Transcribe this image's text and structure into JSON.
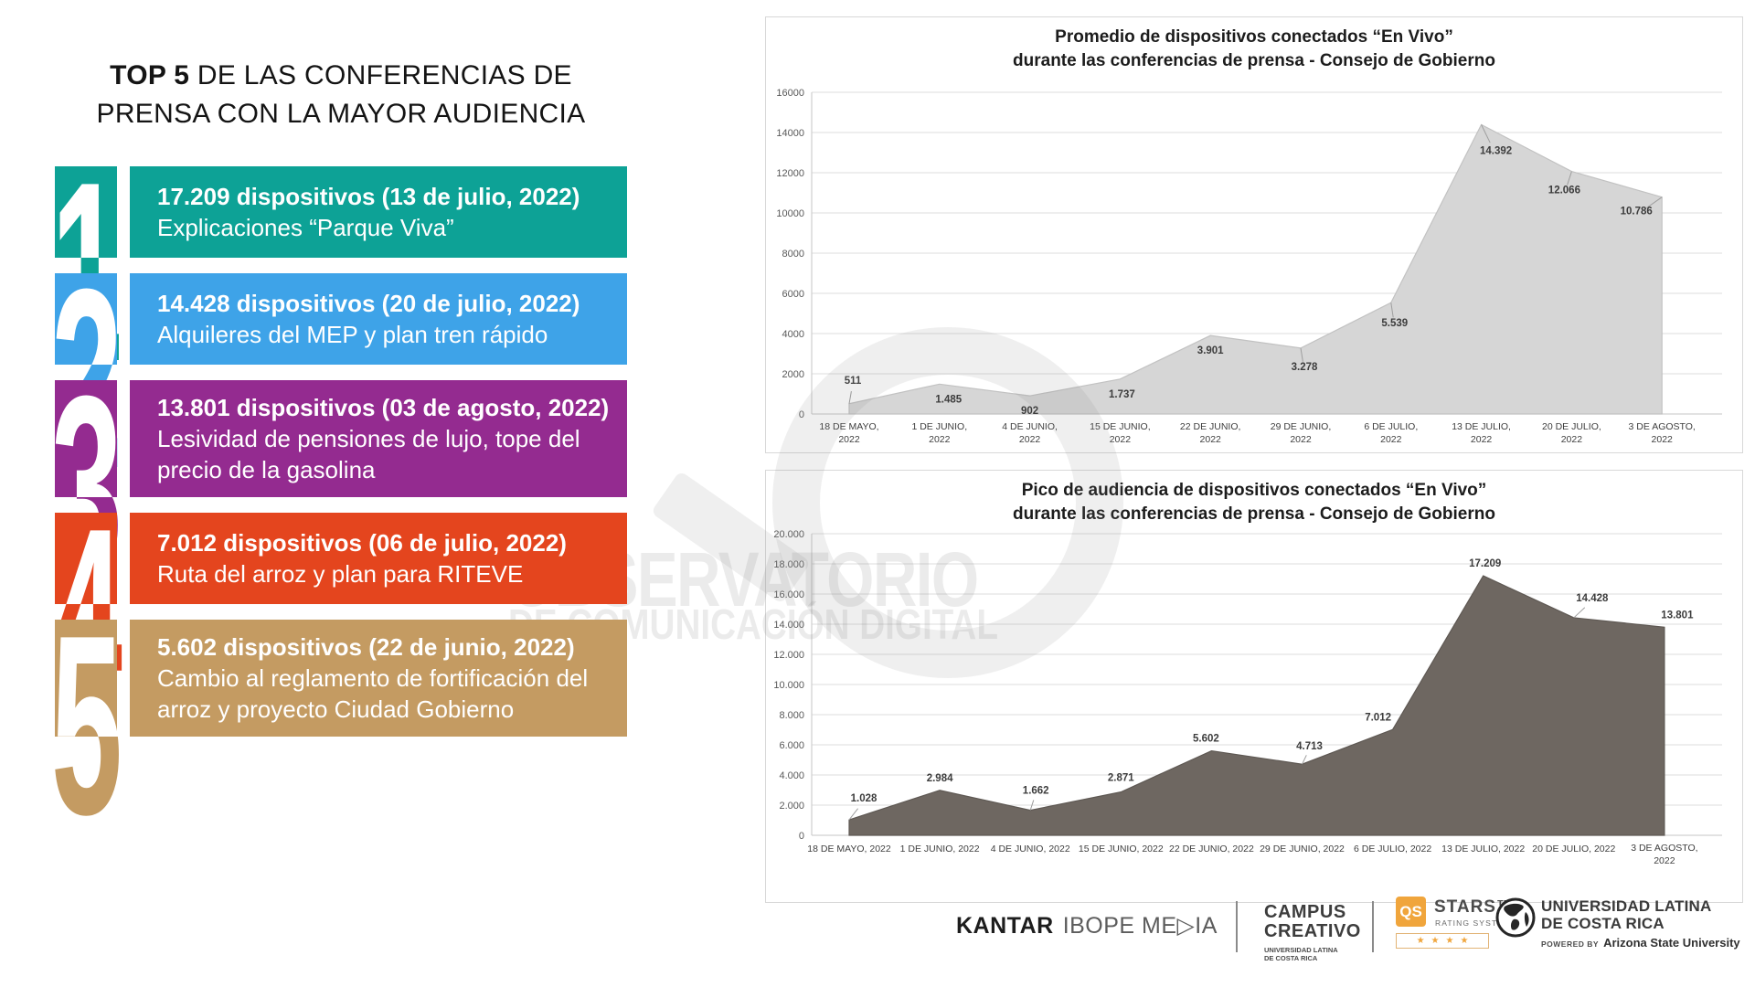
{
  "header": {
    "title_bold": "TOP 5",
    "title_rest": " DE LAS CONFERENCIAS DE PRENSA CON LA MAYOR AUDIENCIA"
  },
  "ranking": {
    "items": [
      {
        "rank": "1",
        "color": "#0DA296",
        "headline": "17.209 dispositivos (13 de julio, 2022)",
        "sublines": [
          "Explicaciones “Parque Viva”"
        ]
      },
      {
        "rank": "2",
        "color": "#3EA3E8",
        "headline": "14.428 dispositivos (20 de julio, 2022)",
        "sublines": [
          "Alquileres del MEP y plan tren rápido"
        ]
      },
      {
        "rank": "3",
        "color": "#942B90",
        "headline": "13.801 dispositivos (03 de agosto, 2022)",
        "sublines": [
          "Lesividad de pensiones de lujo, tope del",
          "precio de la gasolina"
        ]
      },
      {
        "rank": "4",
        "color": "#E4451E",
        "headline": "7.012 dispositivos (06 de julio, 2022)",
        "sublines": [
          "Ruta del arroz y plan para RITEVE"
        ]
      },
      {
        "rank": "5",
        "color": "#C49B62",
        "headline": "5.602 dispositivos (22 de junio, 2022)",
        "sublines": [
          "Cambio al reglamento de fortificación del",
          "arroz y proyecto Ciudad Gobierno"
        ]
      }
    ]
  },
  "chart_data": [
    {
      "type": "area",
      "title_line1": "Promedio de dispositivos conectados “En Vivo”",
      "title_line2": "durante las conferencias de prensa - Consejo de Gobierno",
      "categories": [
        "18 DE MAYO, 2022",
        "1 DE JUNIO, 2022",
        "4 DE JUNIO, 2022",
        "15 DE JUNIO, 2022",
        "22 DE JUNIO, 2022",
        "29 DE JUNIO, 2022",
        "6 DE JULIO, 2022",
        "13 DE JULIO, 2022",
        "20 DE JULIO, 2022",
        "3 DE AGOSTO, 2022"
      ],
      "values": [
        511,
        1485,
        902,
        1737,
        3901,
        3278,
        5539,
        14392,
        12066,
        10786
      ],
      "value_labels": [
        "511",
        "1.485",
        "902",
        "1.737",
        "3.901",
        "3.278",
        "5.539",
        "14.392",
        "12.066",
        "10.786"
      ],
      "ytick_labels": [
        "0",
        "2000",
        "4000",
        "6000",
        "8000",
        "10000",
        "12000",
        "14000",
        "16000"
      ],
      "ylim": [
        0,
        16000
      ],
      "ytick_step": 2000,
      "grid": true,
      "legend": false,
      "fill_color": "#D6D6D6",
      "line_color": "#C2C2C2"
    },
    {
      "type": "area",
      "title_line1": "Pico de audiencia de dispositivos conectados “En Vivo”",
      "title_line2": "durante las conferencias de prensa - Consejo de Gobierno",
      "categories": [
        "18 DE MAYO, 2022",
        "1 DE JUNIO, 2022",
        "4 DE JUNIO, 2022",
        "15 DE JUNIO, 2022",
        "22 DE JUNIO, 2022",
        "29 DE JUNIO, 2022",
        "6 DE JULIO, 2022",
        "13 DE JULIO, 2022",
        "20 DE JULIO, 2022",
        "3 DE AGOSTO, 2022"
      ],
      "values": [
        1028,
        2984,
        1662,
        2871,
        5602,
        4713,
        7012,
        17209,
        14428,
        13801
      ],
      "value_labels": [
        "1.028",
        "2.984",
        "1.662",
        "2.871",
        "5.602",
        "4.713",
        "7.012",
        "17.209",
        "14.428",
        "13.801"
      ],
      "ytick_labels": [
        "0",
        "2.000",
        "4.000",
        "6.000",
        "8.000",
        "10.000",
        "12.000",
        "14.000",
        "16.000",
        "18.000",
        "20.000"
      ],
      "ylim": [
        0,
        20000
      ],
      "ytick_step": 2000,
      "grid": true,
      "legend": false,
      "fill_color": "#6E6761",
      "line_color": "#5E5853"
    }
  ],
  "watermark": {
    "line1": "OBSERVATORIO",
    "line2": "DE COMUNICACIÓN DIGITAL"
  },
  "logos": {
    "kantar_bold": "KANTAR",
    "kantar_rest": "IBOPE ME▷IA",
    "campus_line1": "CAMPUS",
    "campus_line2": "CREATIVO",
    "campus_sub1": "UNIVERSIDAD LATINA",
    "campus_sub2": "DE COSTA RICA",
    "qs_badge": "QS",
    "qs_name": "STARS™",
    "qs_sub": "RATING SYSTEM",
    "qs_star": "★",
    "latina_line1": "UNIVERSIDAD LATINA",
    "latina_line2": "DE COSTA RICA",
    "powered_prefix": "POWERED BY",
    "powered_by": "Arizona State University"
  }
}
